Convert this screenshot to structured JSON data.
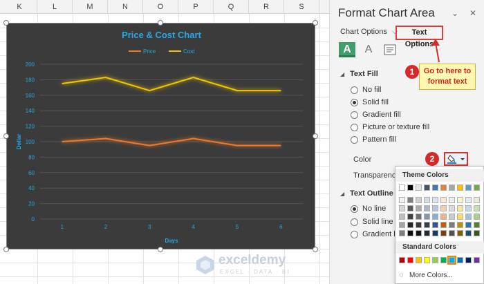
{
  "sheet": {
    "columns": [
      "K",
      "L",
      "M",
      "N",
      "O",
      "P",
      "Q",
      "R",
      "S"
    ]
  },
  "chart_data": {
    "type": "line",
    "title": "Price & Cost Chart",
    "xlabel": "Days",
    "ylabel": "Dollar",
    "categories": [
      1,
      2,
      3,
      4,
      5,
      6
    ],
    "ylim": [
      0,
      200
    ],
    "yticks": [
      0,
      20,
      40,
      60,
      80,
      100,
      120,
      140,
      160,
      180,
      200
    ],
    "legend_position": "top",
    "grid": true,
    "background": "#3b3b3b",
    "series": [
      {
        "name": "Price",
        "values": [
          100,
          104,
          95,
          104,
          95,
          95
        ],
        "color": "#f07a2c"
      },
      {
        "name": "Cost",
        "values": [
          175,
          183,
          166,
          183,
          166,
          166
        ],
        "color": "#f2c500"
      }
    ]
  },
  "watermark": {
    "name": "exceldemy",
    "tagline": "EXCEL · DATA · BI"
  },
  "panel": {
    "title": "Format Chart Area",
    "tab_chart_options": "Chart Options",
    "tab_text_options": "Text Options",
    "text_fill_heading": "Text Fill",
    "fill_options": [
      "No fill",
      "Solid fill",
      "Gradient fill",
      "Picture or texture fill",
      "Pattern fill"
    ],
    "selected_fill": "Solid fill",
    "color_label": "Color",
    "transparency_label": "Transparency",
    "text_outline_heading": "Text Outline",
    "outline_options": [
      "No line",
      "Solid line",
      "Gradient line"
    ],
    "selected_outline": "No line"
  },
  "callout": {
    "step1": "1",
    "step1_text": "Go to here to format text",
    "step2": "2"
  },
  "palette": {
    "theme_heading": "Theme Colors",
    "standard_heading": "Standard Colors",
    "more_colors": "More Colors...",
    "theme_row": [
      "#ffffff",
      "#000000",
      "#e7e6e6",
      "#44546a",
      "#4472c4",
      "#ed7d31",
      "#a5a5a5",
      "#ffc000",
      "#5b9bd5",
      "#70ad47"
    ],
    "shade_rows": [
      [
        "#f2f2f2",
        "#7f7f7f",
        "#d0cece",
        "#d6dce4",
        "#d9e2f3",
        "#fbe5d5",
        "#ededed",
        "#fff2cc",
        "#deebf6",
        "#e2efd9"
      ],
      [
        "#d8d8d8",
        "#595959",
        "#aeabab",
        "#adb9ca",
        "#b4c6e7",
        "#f7cbac",
        "#dbdbdb",
        "#fee599",
        "#bdd7ee",
        "#c5e0b3"
      ],
      [
        "#bfbfbf",
        "#3f3f3f",
        "#757070",
        "#8496b0",
        "#8eaadb",
        "#f4b183",
        "#c9c9c9",
        "#ffd965",
        "#9cc3e5",
        "#a8d08d"
      ],
      [
        "#a5a5a5",
        "#262626",
        "#3a3838",
        "#323f4f",
        "#2f5496",
        "#c55a11",
        "#7b7b7b",
        "#bf9000",
        "#2e75b5",
        "#538135"
      ],
      [
        "#7f7f7f",
        "#0c0c0c",
        "#171616",
        "#222a35",
        "#1e3864",
        "#833c0b",
        "#525252",
        "#7f6000",
        "#1e4e79",
        "#375623"
      ]
    ],
    "standard_row": [
      "#c00000",
      "#ff0000",
      "#ffc000",
      "#ffff00",
      "#92d050",
      "#00b050",
      "#00b0f0",
      "#0070c0",
      "#002060",
      "#7030a0"
    ]
  },
  "colors": {
    "accent_red": "#d62a2a",
    "title_blue": "#26a9e8",
    "selected_tab": "#3f9f69"
  }
}
